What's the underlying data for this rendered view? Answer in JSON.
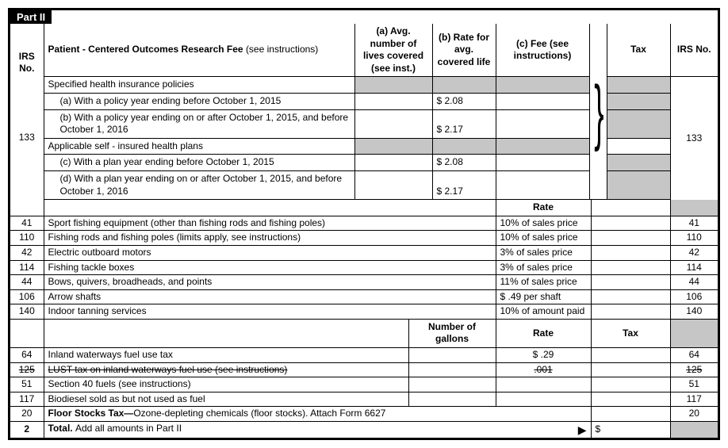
{
  "partLabel": "Part II",
  "pcor": {
    "irsNo": "133",
    "title": "Patient - Centered Outcomes Research Fee",
    "titleSuffix": "(see instructions)",
    "colA": "(a) Avg. number of lives covered (see inst.)",
    "colB": "(b) Rate for avg. covered life",
    "colC": "(c) Fee (see instructions)",
    "colTax": "Tax",
    "colIrsNo": "IRS No.",
    "irsNoLabel": "IRS No.",
    "specHeading": "Specified health insurance policies",
    "rowA": "(a) With a policy year ending before October 1, 2015",
    "rowB": "(b) With a policy year ending on or after October 1, 2015, and before October 1, 2016",
    "selfHeading": "Applicable self - insured health plans",
    "rowC": "(c) With a plan year ending before October 1, 2015",
    "rowD": "(d) With a plan year ending on or after October 1, 2015, and before October 1, 2016",
    "rateA": "$ 2.08",
    "rateB": "$ 2.17",
    "rateC": "$ 2.08",
    "rateD": "$ 2.17"
  },
  "rateHeader": "Rate",
  "goods": [
    {
      "no": "41",
      "desc": "Sport fishing equipment (other than fishing rods and fishing poles)",
      "rate": "10% of sales price"
    },
    {
      "no": "110",
      "desc": "Fishing rods and fishing poles (limits apply, see instructions)",
      "rate": "10% of sales price"
    },
    {
      "no": "42",
      "desc": "Electric outboard motors",
      "rate": "3% of sales price"
    },
    {
      "no": "114",
      "desc": "Fishing tackle boxes",
      "rate": "3% of sales price"
    },
    {
      "no": "44",
      "desc": "Bows, quivers, broadheads, and points",
      "rate": "11% of sales price"
    },
    {
      "no": "106",
      "desc": "Arrow shafts",
      "rate": "$ .49 per shaft"
    },
    {
      "no": "140",
      "desc": "Indoor tanning services",
      "rate": "10% of amount paid"
    }
  ],
  "gallonsHeader": "Number of gallons",
  "taxHeader": "Tax",
  "fuels": [
    {
      "no": "64",
      "desc": "Inland waterways fuel use tax",
      "rate": "$ .29",
      "strike": false
    },
    {
      "no": "125",
      "desc": "LUST tax on inland waterways fuel use (see instructions)",
      "rate": ".001",
      "strike": true
    },
    {
      "no": "51",
      "desc": "Section 40 fuels (see instructions)",
      "rate": "",
      "strike": false
    },
    {
      "no": "117",
      "desc": "Biodiesel sold as but not used as fuel",
      "rate": "",
      "strike": false
    }
  ],
  "floor": {
    "no": "20",
    "desc": "Floor Stocks Tax—Ozone-depleting chemicals (floor stocks). Attach Form 6627"
  },
  "total": {
    "no": "2",
    "desc": "Total. Add all amounts in Part II",
    "currency": "$"
  },
  "arrow": "▶"
}
